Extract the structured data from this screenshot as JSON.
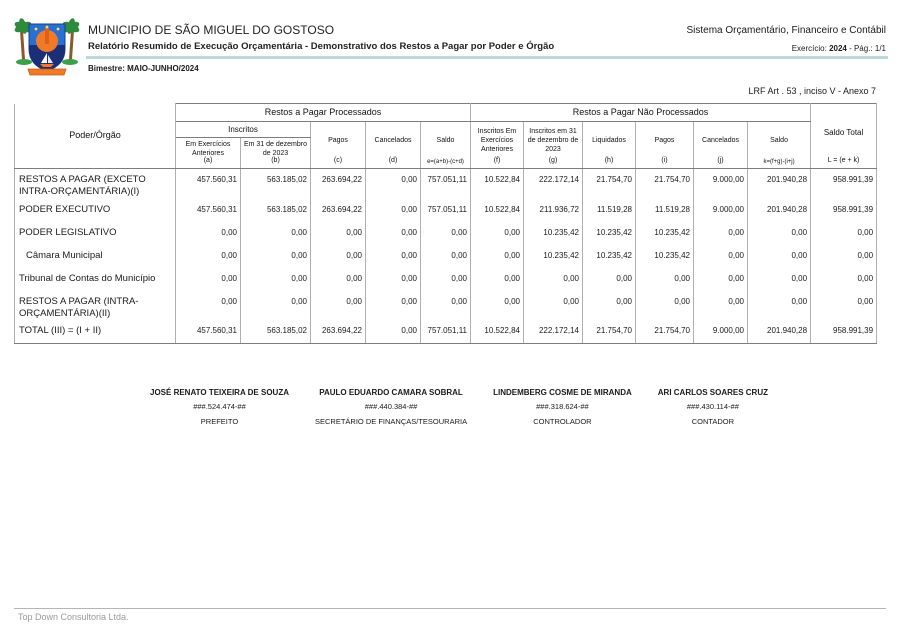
{
  "colors": {
    "accent_line": "#b3dbe0",
    "border_light": "#b0b0b0",
    "border_dark": "#7d7d7d",
    "footer_text": "#9a9a9a",
    "logo_shield_blue": "#2a6fd2",
    "logo_shield_navy": "#1b2f77",
    "logo_sun_orange": "#f07a28",
    "logo_palm_green": "#2e8a3c"
  },
  "icons": {
    "logo": "municipal-coat-of-arms"
  },
  "header": {
    "municipality": "MUNICIPIO DE SÃO MIGUEL DO GOSTOSO",
    "report_title": "Relatório Resumido de Execução Orçamentária - Demonstrativo dos Restos a Pagar por Poder e Órgão",
    "bimester": "Bimestre: MAIO-JUNHO/2024",
    "system_name": "Sistema Orçamentário, Financeiro e Contábil",
    "exercise_label": "Exercício: ",
    "exercise_year": "2024",
    "page_info": " -   Pág.: 1/1",
    "lrf_reference": "LRF Art . 53 , inciso V - Anexo 7"
  },
  "table": {
    "col_poder": "Poder/Órgão",
    "group_processados": "Restos a Pagar Processados",
    "group_nao_processados": "Restos a Pagar Não Processados",
    "group_inscritos": "Inscritos",
    "cols": {
      "a": {
        "label": "Em Exercícios Anteriores",
        "letter": "(a)"
      },
      "b": {
        "label": "Em 31 de dezembro de 2023",
        "letter": "(b)"
      },
      "c": {
        "label": "Pagos",
        "letter": "(c)"
      },
      "d": {
        "label": "Cancelados",
        "letter": "(d)"
      },
      "e": {
        "label": "Saldo",
        "letter": "e=(a+b)-(c+d)"
      },
      "f": {
        "label": "Inscritos Em Exercícios Anteriores",
        "letter": "(f)"
      },
      "g": {
        "label": "Inscritos em 31 de dezembro de 2023",
        "letter": "(g)"
      },
      "h": {
        "label": "Liquidados",
        "letter": "(h)"
      },
      "i": {
        "label": "Pagos",
        "letter": "(i)"
      },
      "j": {
        "label": "Cancelados",
        "letter": "(j)"
      },
      "k": {
        "label": "Saldo",
        "letter": "k=(f+g)-(i+j)"
      },
      "l": {
        "label": "Saldo Total",
        "letter": "L = (e + k)"
      }
    },
    "rows": [
      {
        "name": "RESTOS A PAGAR (EXCETO INTRA-ORÇAMENTÁRIA)(I)",
        "indent": false,
        "total": false,
        "values": [
          "457.560,31",
          "563.185,02",
          "263.694,22",
          "0,00",
          "757.051,11",
          "10.522,84",
          "222.172,14",
          "21.754,70",
          "21.754,70",
          "9.000,00",
          "201.940,28",
          "958.991,39"
        ]
      },
      {
        "name": "PODER EXECUTIVO",
        "indent": false,
        "total": false,
        "values": [
          "457.560,31",
          "563.185,02",
          "263.694,22",
          "0,00",
          "757.051,11",
          "10.522,84",
          "211.936,72",
          "11.519,28",
          "11.519,28",
          "9.000,00",
          "201.940,28",
          "958.991,39"
        ]
      },
      {
        "name": "PODER LEGISLATIVO",
        "indent": false,
        "total": false,
        "values": [
          "0,00",
          "0,00",
          "0,00",
          "0,00",
          "0,00",
          "0,00",
          "10.235,42",
          "10.235,42",
          "10.235,42",
          "0,00",
          "0,00",
          "0,00"
        ]
      },
      {
        "name": "Câmara Municipal",
        "indent": true,
        "total": false,
        "values": [
          "0,00",
          "0,00",
          "0,00",
          "0,00",
          "0,00",
          "0,00",
          "10.235,42",
          "10.235,42",
          "10.235,42",
          "0,00",
          "0,00",
          "0,00"
        ]
      },
      {
        "name": "Tribunal de Contas do Município",
        "indent": false,
        "total": false,
        "values": [
          "0,00",
          "0,00",
          "0,00",
          "0,00",
          "0,00",
          "0,00",
          "0,00",
          "0,00",
          "0,00",
          "0,00",
          "0,00",
          "0,00"
        ]
      },
      {
        "name": "RESTOS A PAGAR (INTRA-ORÇAMENTÁRIA)(II)",
        "indent": false,
        "total": false,
        "values": [
          "0,00",
          "0,00",
          "0,00",
          "0,00",
          "0,00",
          "0,00",
          "0,00",
          "0,00",
          "0,00",
          "0,00",
          "0,00",
          "0,00"
        ]
      },
      {
        "name": "TOTAL (III) = (I + II)",
        "indent": false,
        "total": true,
        "values": [
          "457.560,31",
          "563.185,02",
          "263.694,22",
          "0,00",
          "757.051,11",
          "10.522,84",
          "222.172,14",
          "21.754,70",
          "21.754,70",
          "9.000,00",
          "201.940,28",
          "958.991,39"
        ]
      }
    ]
  },
  "signatures": [
    {
      "name": "JOSÉ RENATO TEIXEIRA DE SOUZA",
      "document": "###.524.474-##",
      "role": "PREFEITO"
    },
    {
      "name": "PAULO EDUARDO CAMARA SOBRAL",
      "document": "###.440.384-##",
      "role": "SECRETÁRIO DE FINANÇAS/TESOURARIA"
    },
    {
      "name": "LINDEMBERG COSME DE MIRANDA",
      "document": "###.318.624-##",
      "role": "CONTROLADOR"
    },
    {
      "name": "ARI CARLOS SOARES CRUZ",
      "document": "###.430.114-##",
      "role": "CONTADOR"
    }
  ],
  "footer": {
    "text": "Top Down Consultoria Ltda."
  }
}
